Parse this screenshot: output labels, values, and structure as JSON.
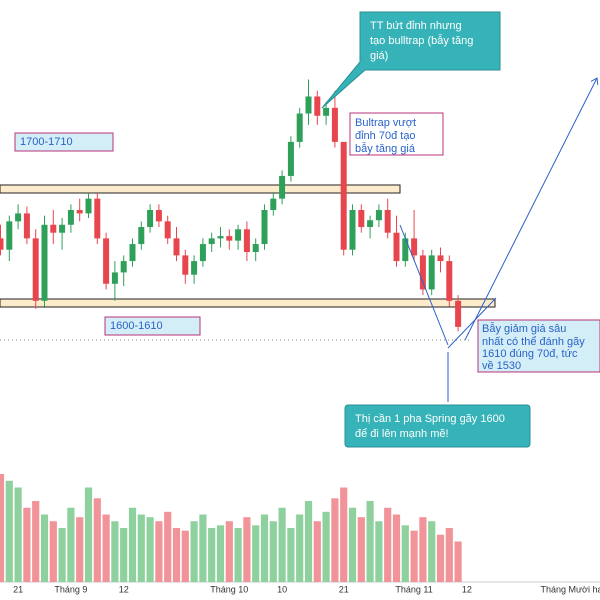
{
  "chart_data": {
    "type": "candlestick",
    "categories": [
      null,
      null,
      "21",
      null,
      null,
      null,
      null,
      null,
      "Tháng 9",
      null,
      null,
      null,
      null,
      null,
      "12",
      null,
      null,
      null,
      null,
      null,
      null,
      null,
      null,
      null,
      null,
      null,
      "Tháng 10",
      null,
      null,
      null,
      null,
      null,
      "10",
      null,
      null,
      null,
      null,
      null,
      null,
      "21",
      null,
      null,
      null,
      null,
      null,
      null,
      null,
      "Tháng 11",
      null,
      null,
      null,
      null,
      null,
      "12",
      null,
      null,
      null,
      null,
      null,
      null,
      null,
      null,
      null,
      null,
      null,
      "Tháng Mười hai"
    ],
    "open": [
      1660,
      1650,
      1675,
      1682,
      1660,
      1605,
      1672,
      1665,
      1672,
      1685,
      1682,
      1695,
      1660,
      1620,
      1630,
      1640,
      1655,
      1670,
      1685,
      1675,
      1660,
      1645,
      1628,
      1640,
      1655,
      1660,
      1662,
      1658,
      1668,
      1648,
      1655,
      1685,
      1695,
      1715,
      1745,
      1770,
      1785,
      1768,
      1775,
      1745,
      1650,
      1685,
      1670,
      1676,
      1685,
      1665,
      1640,
      1660,
      1645,
      1615,
      1645,
      1640,
      1605,
      null,
      null,
      null,
      null,
      null,
      null,
      null,
      null,
      null,
      null,
      null,
      null,
      null
    ],
    "high": [
      1672,
      1680,
      1690,
      1688,
      1668,
      1680,
      1685,
      1678,
      1690,
      1695,
      1700,
      1700,
      1665,
      1640,
      1645,
      1660,
      1675,
      1690,
      1690,
      1680,
      1670,
      1650,
      1645,
      1660,
      1665,
      1670,
      1668,
      1672,
      1675,
      1660,
      1690,
      1700,
      1720,
      1750,
      1775,
      1800,
      1790,
      1780,
      1790,
      1745,
      1690,
      1690,
      1680,
      1690,
      1695,
      1680,
      1665,
      1685,
      1650,
      1650,
      1652,
      1645,
      1610,
      null,
      null,
      null,
      null,
      null,
      null,
      null,
      null,
      null,
      null,
      null,
      null,
      null
    ],
    "low": [
      1645,
      1640,
      1668,
      1655,
      1598,
      1600,
      1655,
      1650,
      1665,
      1675,
      1678,
      1655,
      1615,
      1605,
      1618,
      1635,
      1650,
      1665,
      1670,
      1655,
      1640,
      1620,
      1620,
      1635,
      1648,
      1652,
      1650,
      1650,
      1640,
      1640,
      1650,
      1680,
      1690,
      1710,
      1740,
      1760,
      1760,
      1760,
      1740,
      1645,
      1645,
      1665,
      1660,
      1670,
      1660,
      1635,
      1635,
      1640,
      1610,
      1610,
      1630,
      1600,
      1578,
      null,
      null,
      null,
      null,
      null,
      null,
      null,
      null,
      null,
      null,
      null,
      null,
      null
    ],
    "close": [
      1650,
      1675,
      1682,
      1660,
      1605,
      1672,
      1665,
      1672,
      1685,
      1682,
      1695,
      1660,
      1620,
      1630,
      1640,
      1655,
      1670,
      1685,
      1675,
      1660,
      1645,
      1628,
      1640,
      1655,
      1660,
      1662,
      1658,
      1668,
      1648,
      1655,
      1685,
      1695,
      1715,
      1745,
      1770,
      1785,
      1768,
      1775,
      1745,
      1650,
      1685,
      1670,
      1676,
      1685,
      1665,
      1640,
      1660,
      1645,
      1615,
      1645,
      1640,
      1605,
      1582,
      null,
      null,
      null,
      null,
      null,
      null,
      null,
      null,
      null,
      null,
      null,
      null,
      null
    ],
    "volume": [
      80,
      75,
      70,
      55,
      60,
      50,
      45,
      40,
      55,
      48,
      70,
      62,
      50,
      45,
      40,
      55,
      50,
      48,
      45,
      52,
      40,
      38,
      45,
      50,
      40,
      42,
      45,
      40,
      48,
      42,
      50,
      45,
      55,
      40,
      50,
      60,
      45,
      52,
      62,
      70,
      55,
      48,
      60,
      45,
      55,
      50,
      42,
      38,
      48,
      45,
      35,
      40,
      30,
      null,
      null,
      null,
      null,
      null,
      null,
      null,
      null,
      null,
      null,
      null,
      null,
      null
    ],
    "ylim": [
      1500,
      1870
    ],
    "vlim": [
      0,
      100
    ],
    "up_color": "#2ea05a",
    "down_color": "#e8464f",
    "up_volume_color": "#8fd19e",
    "down_volume_color": "#f0949a",
    "annotations": {
      "bulltrap": [
        "TT bứt đỉnh nhưng",
        "tạo bulltrap (bẫy tăng",
        "giá)"
      ],
      "overshoot": [
        "Bultrap vượt",
        "đỉnh 70đ tạo",
        "bẫy tăng giá"
      ],
      "resistance": "1700-1710",
      "support": "1600-1610",
      "beartrap": [
        "Bẫy giảm giá sâu",
        "nhất có thể đánh gãy",
        "1610 đúng 70đ, tức",
        "về 1530"
      ],
      "spring": [
        "Thị cần 1 pha Spring gãy 1600",
        "để đi lên mạnh mẽ!"
      ]
    }
  }
}
